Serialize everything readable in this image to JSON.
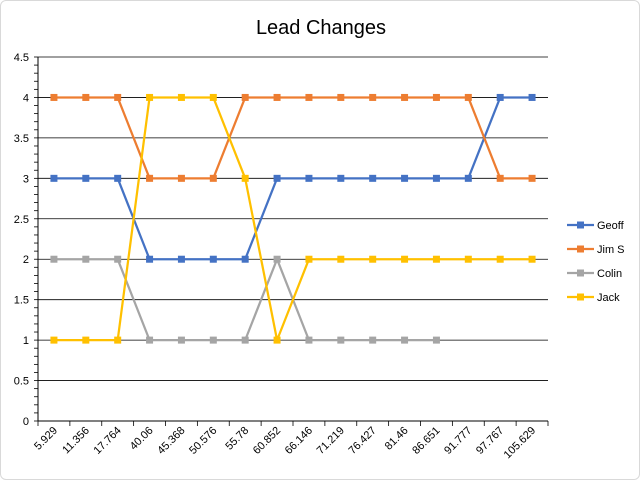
{
  "chart_data": {
    "type": "line",
    "title": "Lead Changes",
    "categories": [
      "5.929",
      "11.356",
      "17.764",
      "40.06",
      "45.368",
      "50.576",
      "55.78",
      "60.852",
      "66.146",
      "71.219",
      "76.427",
      "81.46",
      "86.651",
      "91.777",
      "97.767",
      "105.629"
    ],
    "ylim": [
      0,
      4.5
    ],
    "yticks": [
      "0",
      "0.5",
      "1",
      "1.5",
      "2",
      "2.5",
      "3",
      "3.5",
      "4",
      "4.5"
    ],
    "grid": true,
    "legend": "right",
    "series": [
      {
        "name": "Geoff",
        "color": "#4472C4",
        "values": [
          3,
          3,
          3,
          2,
          2,
          2,
          2,
          3,
          3,
          3,
          3,
          3,
          3,
          3,
          4,
          4
        ]
      },
      {
        "name": "Jim S",
        "color": "#ED7D31",
        "values": [
          4,
          4,
          4,
          3,
          3,
          3,
          4,
          4,
          4,
          4,
          4,
          4,
          4,
          4,
          3,
          3
        ]
      },
      {
        "name": "Colin",
        "color": "#A5A5A5",
        "values": [
          2,
          2,
          2,
          1,
          1,
          1,
          1,
          2,
          1,
          1,
          1,
          1,
          1,
          null,
          null,
          null
        ]
      },
      {
        "name": "Jack",
        "color": "#FFC000",
        "values": [
          1,
          1,
          1,
          4,
          4,
          4,
          3,
          1,
          2,
          2,
          2,
          2,
          2,
          2,
          2,
          2
        ]
      }
    ]
  }
}
